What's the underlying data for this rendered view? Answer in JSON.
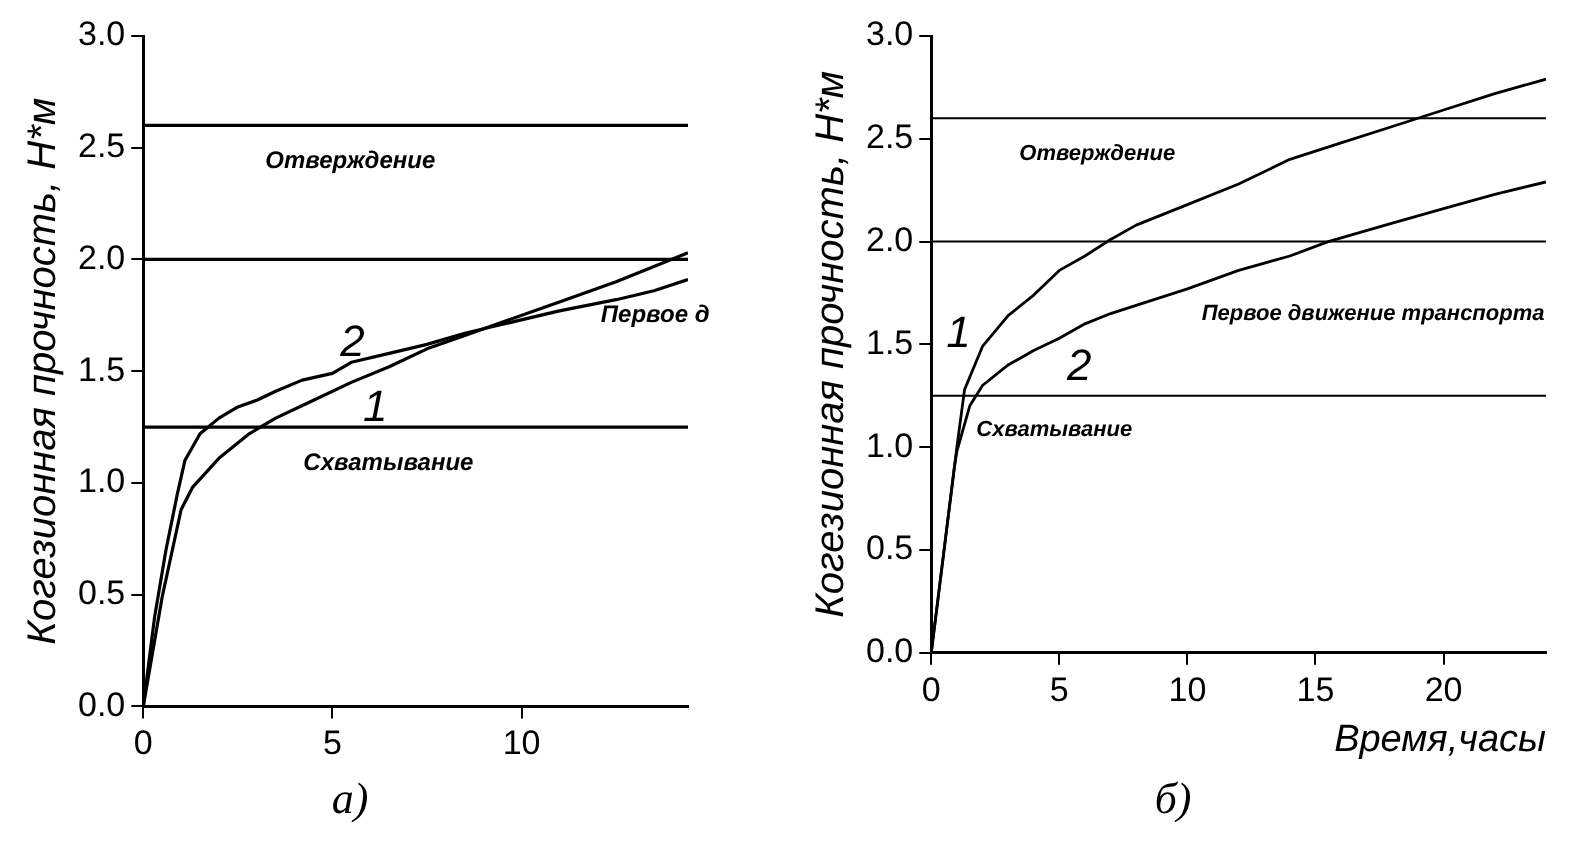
{
  "chart_data": [
    {
      "type": "line",
      "title": "а)",
      "ylabel": "Когезионная прочность, Н*м",
      "xlim": [
        0,
        14.4
      ],
      "xticks": [
        0,
        5,
        10
      ],
      "ylim": [
        0,
        3
      ],
      "yticks": [
        {
          "value": 0,
          "label": "0.0"
        },
        {
          "value": 0.5,
          "label": "0.5"
        },
        {
          "value": 1,
          "label": "1.0"
        },
        {
          "value": 1.5,
          "label": "1.5"
        },
        {
          "value": 2,
          "label": "2.0"
        },
        {
          "value": 2.5,
          "label": "2.5"
        },
        {
          "value": 3,
          "label": "3.0"
        }
      ],
      "marker": "none",
      "line_style": "solid",
      "legend": false,
      "series": [
        {
          "name": "1",
          "color": "#000000",
          "x": [
            0,
            0.5,
            1.0,
            1.3,
            2.0,
            2.8,
            3.5,
            4.5,
            5.5,
            6.5,
            7.5,
            8.5,
            9.5,
            11,
            12.5,
            14.4
          ],
          "values": [
            0,
            0.49,
            0.88,
            0.98,
            1.11,
            1.22,
            1.29,
            1.37,
            1.45,
            1.52,
            1.6,
            1.66,
            1.72,
            1.81,
            1.9,
            2.03
          ]
        },
        {
          "name": "2",
          "color": "#000000",
          "x": [
            0,
            0.3,
            0.6,
            0.9,
            1.1,
            1.5,
            2,
            2.5,
            3,
            3.5,
            4.2,
            5,
            5.5,
            6.5,
            7.5,
            8.5,
            9.5,
            11,
            12.5,
            13.5,
            14.4
          ],
          "values": [
            0,
            0.4,
            0.7,
            0.95,
            1.1,
            1.22,
            1.29,
            1.34,
            1.37,
            1.41,
            1.46,
            1.49,
            1.54,
            1.58,
            1.62,
            1.67,
            1.71,
            1.77,
            1.82,
            1.86,
            1.91
          ]
        }
      ],
      "ref_lines": [
        {
          "axis": "y",
          "value": 2.6,
          "color": "#000000",
          "label": "Отверждение"
        },
        {
          "axis": "y",
          "value": 2.0,
          "color": "#000000",
          "label": "Первое д"
        },
        {
          "axis": "y",
          "value": 1.25,
          "color": "#000000",
          "label": "Схватывание"
        }
      ]
    },
    {
      "type": "line",
      "title": "б)",
      "xlabel": "Время,часы",
      "ylabel": "Когезионная прочность, Н*м",
      "xlim": [
        0,
        24
      ],
      "xticks": [
        0,
        5,
        10,
        15,
        20
      ],
      "ylim": [
        0,
        3
      ],
      "yticks": [
        {
          "value": 0,
          "label": "0.0"
        },
        {
          "value": 0.5,
          "label": "0.5"
        },
        {
          "value": 1,
          "label": "1.0"
        },
        {
          "value": 1.5,
          "label": "1.5"
        },
        {
          "value": 2,
          "label": "2.0"
        },
        {
          "value": 2.5,
          "label": "2.5"
        },
        {
          "value": 3,
          "label": "3.0"
        }
      ],
      "marker": "none",
      "line_style": "solid",
      "legend": false,
      "series": [
        {
          "name": "1",
          "color": "#000000",
          "x": [
            0,
            0.3,
            0.6,
            0.9,
            1.0,
            1.3,
            2,
            3,
            4,
            5,
            6,
            7,
            8,
            10,
            12,
            14,
            16,
            18,
            19,
            20,
            22,
            24
          ],
          "values": [
            0,
            0.3,
            0.6,
            0.9,
            1.0,
            1.28,
            1.49,
            1.64,
            1.74,
            1.86,
            1.93,
            2.01,
            2.08,
            2.18,
            2.28,
            2.4,
            2.48,
            2.56,
            2.6,
            2.64,
            2.72,
            2.79
          ]
        },
        {
          "name": "2",
          "color": "#000000",
          "x": [
            0,
            0.3,
            0.6,
            0.9,
            1.0,
            1.5,
            2,
            3,
            4,
            5,
            6,
            7,
            8,
            10,
            12,
            14,
            15.5,
            18,
            20,
            22,
            24
          ],
          "values": [
            0,
            0.3,
            0.6,
            0.9,
            0.98,
            1.2,
            1.3,
            1.4,
            1.47,
            1.53,
            1.6,
            1.65,
            1.69,
            1.77,
            1.86,
            1.93,
            2.0,
            2.09,
            2.16,
            2.23,
            2.29
          ]
        }
      ],
      "ref_lines": [
        {
          "axis": "y",
          "value": 2.6,
          "color": "#000000",
          "label": "Отверждение"
        },
        {
          "axis": "y",
          "value": 2.0,
          "color": "#000000",
          "label": "Первое движение транспорта"
        },
        {
          "axis": "y",
          "value": 1.25,
          "color": "#000000",
          "label": "Схватывание"
        }
      ]
    }
  ]
}
